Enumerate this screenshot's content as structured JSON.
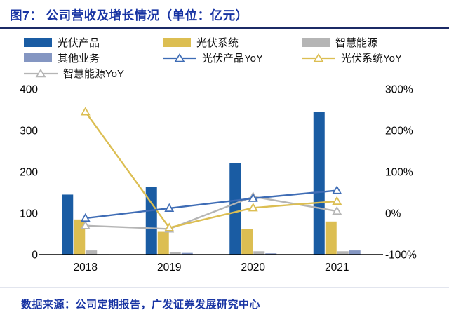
{
  "header": {
    "title": "图7：  公司营收及增长情况（单位：亿元）"
  },
  "footer": {
    "source": "数据来源：公司定期报告，广发证券发展研究中心"
  },
  "colors": {
    "title_text": "#1834A3",
    "title_rule": "#1B2A66",
    "bar_pv_product": "#1A5CA3",
    "bar_pv_system": "#DCBE52",
    "bar_smart_energy": "#B5B5B5",
    "bar_other": "#8496C2",
    "line_pv_product": "#3E6CB5",
    "line_pv_system": "#DCBE52",
    "line_smart_energy": "#B5B5B5",
    "axis_text": "#050505",
    "axis_line": "#000000"
  },
  "legend": [
    {
      "label": "光伏产品",
      "swatch": "bar",
      "color_key": "bar_pv_product"
    },
    {
      "label": "光伏系统",
      "swatch": "bar",
      "color_key": "bar_pv_system"
    },
    {
      "label": "智慧能源",
      "swatch": "bar",
      "color_key": "bar_smart_energy"
    },
    {
      "label": "其他业务",
      "swatch": "bar",
      "color_key": "bar_other"
    },
    {
      "label": "光伏产品YoY",
      "swatch": "line",
      "color_key": "line_pv_product"
    },
    {
      "label": "光伏系统YoY",
      "swatch": "line",
      "color_key": "line_pv_system"
    },
    {
      "label": "智慧能源YoY",
      "swatch": "line",
      "color_key": "line_smart_energy"
    }
  ],
  "chart_data": {
    "type": "bar",
    "subtype": "grouped-bars-with-yoy-lines-secondary-axis",
    "title": "公司营收及增长情况（单位：亿元）",
    "categories": [
      "2018",
      "2019",
      "2020",
      "2021"
    ],
    "bar_series": [
      {
        "name": "光伏产品",
        "axis": "left",
        "color_key": "bar_pv_product",
        "values": [
          145,
          163,
          222,
          345
        ]
      },
      {
        "name": "光伏系统",
        "axis": "left",
        "color_key": "bar_pv_system",
        "values": [
          85,
          55,
          62,
          80
        ]
      },
      {
        "name": "智慧能源",
        "axis": "left",
        "color_key": "bar_smart_energy",
        "values": [
          10,
          6,
          8,
          8
        ]
      },
      {
        "name": "其他业务",
        "axis": "left",
        "color_key": "bar_other",
        "values": [
          1,
          4,
          3,
          10
        ]
      }
    ],
    "line_series": [
      {
        "name": "光伏产品YoY",
        "axis": "right",
        "color_key": "line_pv_product",
        "values": [
          -12,
          12,
          36,
          55
        ]
      },
      {
        "name": "光伏系统YoY",
        "axis": "right",
        "color_key": "line_pv_system",
        "values": [
          245,
          -35,
          13,
          29
        ]
      },
      {
        "name": "智慧能源YoY",
        "axis": "right",
        "color_key": "line_smart_energy",
        "values": [
          -30,
          -38,
          40,
          5
        ]
      }
    ],
    "left_axis": {
      "min": 0,
      "max": 400,
      "ticks": [
        0,
        100,
        200,
        300,
        400
      ]
    },
    "right_axis": {
      "min": -100,
      "max": 300,
      "tick_values": [
        -100,
        0,
        100,
        200,
        300
      ],
      "tick_labels": [
        "-100%",
        "0%",
        "100%",
        "200%",
        "300%"
      ]
    },
    "grid": false,
    "legend_position": "top",
    "xlabel": "",
    "ylabel_left": "亿元",
    "ylabel_right": "%"
  }
}
